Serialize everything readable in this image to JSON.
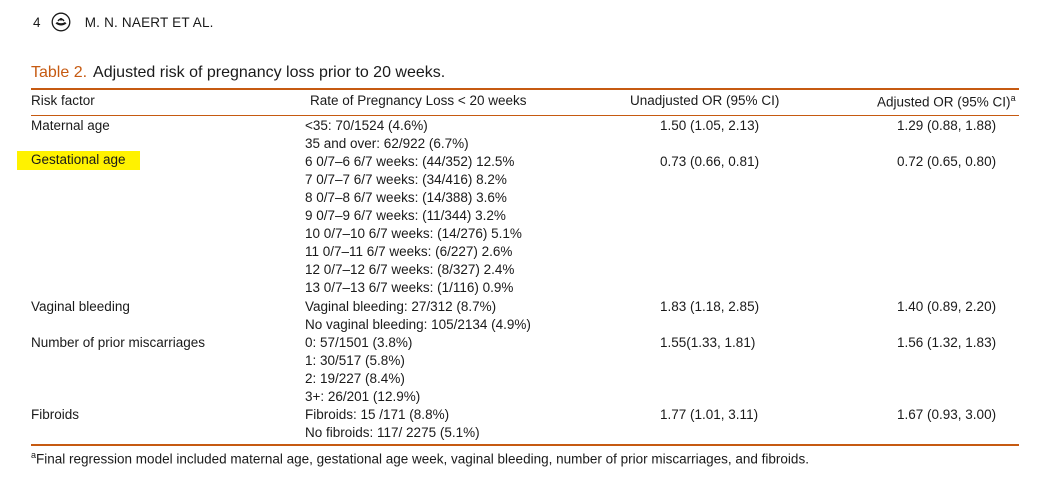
{
  "header": {
    "page_number": "4",
    "authors": "M. N. NAERT ET AL."
  },
  "table": {
    "label": "Table 2.",
    "title": "Adjusted risk of pregnancy loss prior to 20 weeks.",
    "columns": {
      "risk": "Risk factor",
      "rate": "Rate of Pregnancy Loss < 20 weeks",
      "unadjusted": "Unadjusted OR (95% CI)",
      "adjusted": "Adjusted OR (95% CI)",
      "adjusted_sup": "a"
    },
    "rows": [
      {
        "risk": "Maternal age",
        "rates": [
          "<35: 70/1524 (4.6%)",
          "35 and over: 62/922 (6.7%)"
        ],
        "unadjusted": "1.50 (1.05, 2.13)",
        "adjusted": "1.29 (0.88, 1.88)",
        "highlighted": false
      },
      {
        "risk": "Gestational age",
        "rates": [
          "6 0/7–6 6/7 weeks: (44/352) 12.5%",
          "7 0/7–7 6/7 weeks: (34/416) 8.2%",
          "8 0/7–8 6/7 weeks: (14/388) 3.6%",
          "9 0/7–9 6/7 weeks: (11/344) 3.2%",
          "10 0/7–10 6/7 weeks: (14/276) 5.1%",
          "11 0/7–11 6/7 weeks: (6/227) 2.6%",
          "12 0/7–12 6/7 weeks: (8/327) 2.4%",
          "13 0/7–13 6/7 weeks: (1/116) 0.9%"
        ],
        "unadjusted": "0.73 (0.66, 0.81)",
        "adjusted": "0.72 (0.65, 0.80)",
        "highlighted": true
      },
      {
        "risk": "Vaginal bleeding",
        "rates": [
          "Vaginal bleeding: 27/312 (8.7%)",
          "No vaginal bleeding: 105/2134 (4.9%)"
        ],
        "unadjusted": "1.83 (1.18, 2.85)",
        "adjusted": "1.40 (0.89, 2.20)",
        "highlighted": false
      },
      {
        "risk": "Number of prior miscarriages",
        "rates": [
          "0: 57/1501 (3.8%)",
          "1: 30/517 (5.8%)",
          "2: 19/227 (8.4%)",
          "3+: 26/201 (12.9%)"
        ],
        "unadjusted": "1.55(1.33, 1.81)",
        "adjusted": "1.56 (1.32, 1.83)",
        "highlighted": false
      },
      {
        "risk": "Fibroids",
        "rates": [
          "Fibroids: 15 /171 (8.8%)",
          "No fibroids: 117/ 2275 (5.1%)"
        ],
        "unadjusted": "1.77 (1.01, 3.11)",
        "adjusted": "1.67 (0.93, 3.00)",
        "highlighted": false
      }
    ],
    "footnote_sup": "a",
    "footnote": "Final regression model included maternal age, gestational age week, vaginal bleeding, number of prior miscarriages, and fibroids."
  },
  "colors": {
    "accent": "#c65a11",
    "highlight": "#fff200",
    "text": "#1a1a1a"
  },
  "icons": {
    "publisher_logo": "publisher-logo-icon"
  }
}
